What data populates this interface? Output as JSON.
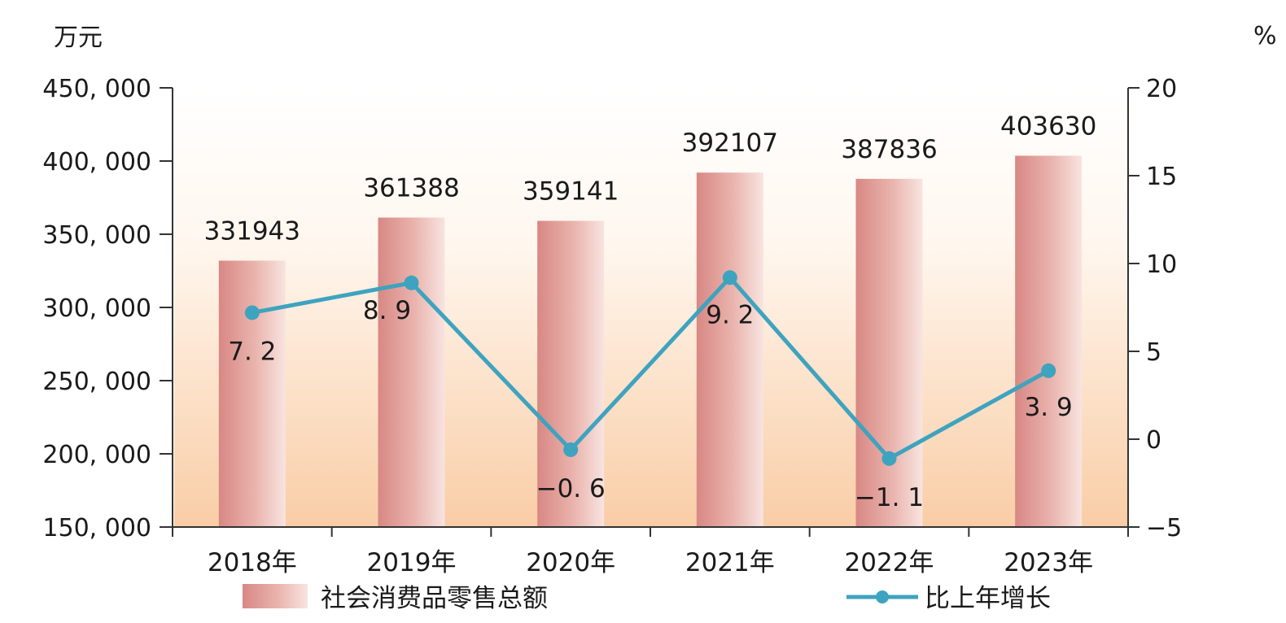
{
  "colors": {
    "bar_dark": "#d88884",
    "bar_light": "#f6dcd8",
    "bg_top": "#ffffff",
    "bg_bottom": "#f9cda6",
    "line": "#3ea3bf",
    "axis": "#333333"
  },
  "chart_data": {
    "type": "bar",
    "categories": [
      "2018年",
      "2019年",
      "2020年",
      "2021年",
      "2022年",
      "2023年"
    ],
    "y_left_unit": "万元",
    "y_right_unit": "%",
    "y_left_ticks": [
      "450, 000",
      "400, 000",
      "350, 000",
      "300, 000",
      "250, 000",
      "200, 000",
      "150, 000"
    ],
    "y_left_tick_values": [
      450000,
      400000,
      350000,
      300000,
      250000,
      200000,
      150000
    ],
    "y_right_ticks": [
      "20",
      "15",
      "10",
      "5",
      "0",
      "−5"
    ],
    "y_right_tick_values": [
      20,
      15,
      10,
      5,
      0,
      -5
    ],
    "ylim_left": [
      150000,
      450000
    ],
    "ylim_right": [
      -5,
      20
    ],
    "series": [
      {
        "name": "社会消费品零售总额",
        "type": "bar",
        "axis": "left",
        "values": [
          331943,
          361388,
          359141,
          392107,
          387836,
          403630
        ],
        "labels": [
          "331943",
          "361388",
          "359141",
          "392107",
          "387836",
          "403630"
        ]
      },
      {
        "name": "比上年增长",
        "type": "line",
        "axis": "right",
        "values": [
          7.2,
          8.9,
          -0.6,
          9.2,
          -1.1,
          3.9
        ],
        "labels": [
          "7. 2",
          "8. 9",
          "−0. 6",
          "9. 2",
          "−1. 1",
          "3. 9"
        ]
      }
    ],
    "legend": {
      "position": "bottom",
      "items": [
        "社会消费品零售总额",
        "比上年增长"
      ]
    },
    "grid": false
  }
}
